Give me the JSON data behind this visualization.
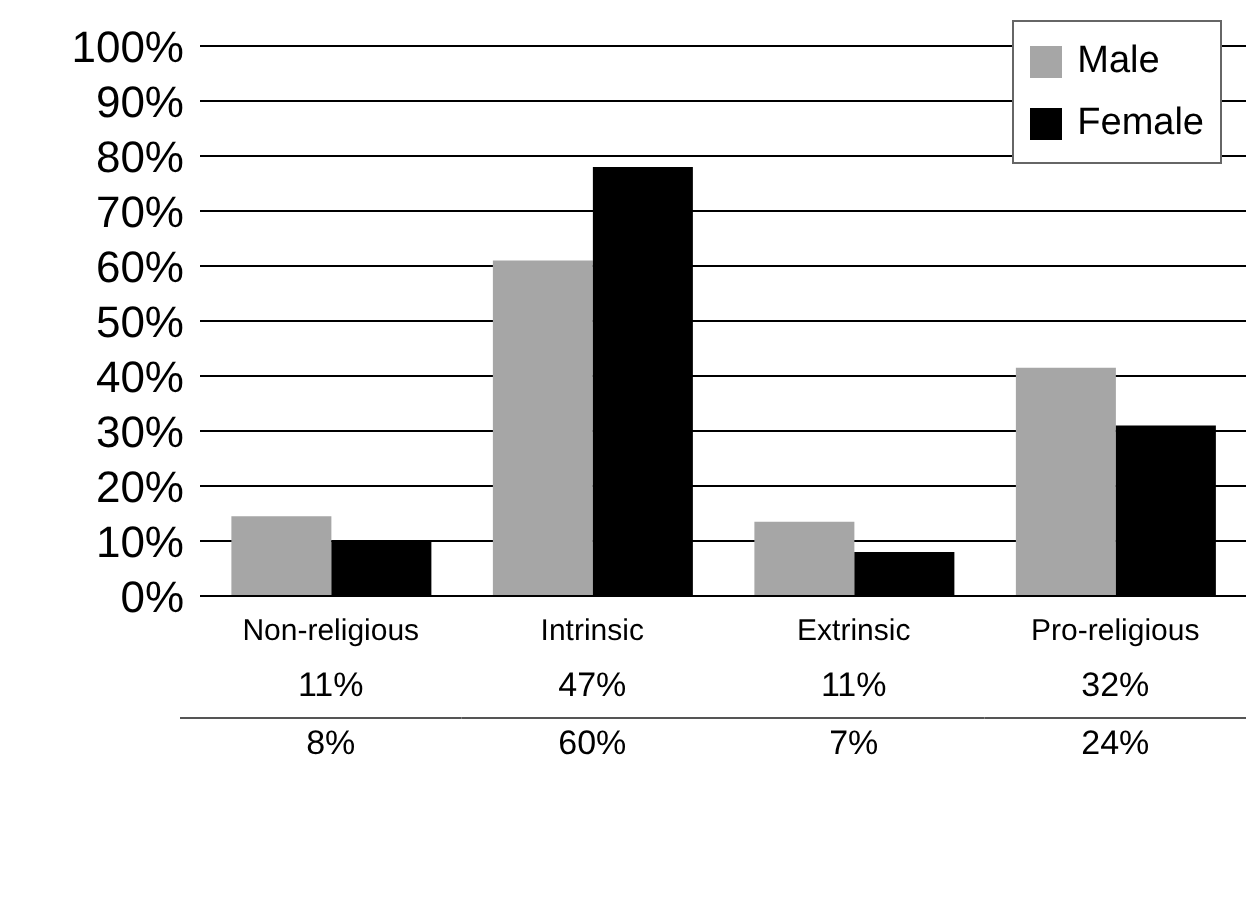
{
  "chart_data": {
    "type": "bar",
    "categories": [
      "Non-religious",
      "Intrinsic",
      "Extrinsic",
      "Pro-religious"
    ],
    "series": [
      {
        "name": "Male",
        "color": "#a6a6a6",
        "values": [
          14.5,
          61,
          13.5,
          41.5
        ]
      },
      {
        "name": "Female",
        "color": "#000000",
        "values": [
          10,
          78,
          8,
          31
        ]
      }
    ],
    "annotations": [
      "11%",
      "47%",
      "11%",
      "32%",
      "8%",
      "60%",
      "7%",
      "24%"
    ],
    "ylim": [
      0,
      100
    ],
    "yticks": [
      {
        "value": 0,
        "label": "0%"
      },
      {
        "value": 10,
        "label": "10%"
      },
      {
        "value": 20,
        "label": "20%"
      },
      {
        "value": 30,
        "label": "30%"
      },
      {
        "value": 40,
        "label": "40%"
      },
      {
        "value": 50,
        "label": "50%"
      },
      {
        "value": 60,
        "label": "60%"
      },
      {
        "value": 70,
        "label": "70%"
      },
      {
        "value": 80,
        "label": "80%"
      },
      {
        "value": 90,
        "label": "90%"
      },
      {
        "value": 100,
        "label": "100%"
      }
    ],
    "grid": "y",
    "legend": "top right"
  }
}
